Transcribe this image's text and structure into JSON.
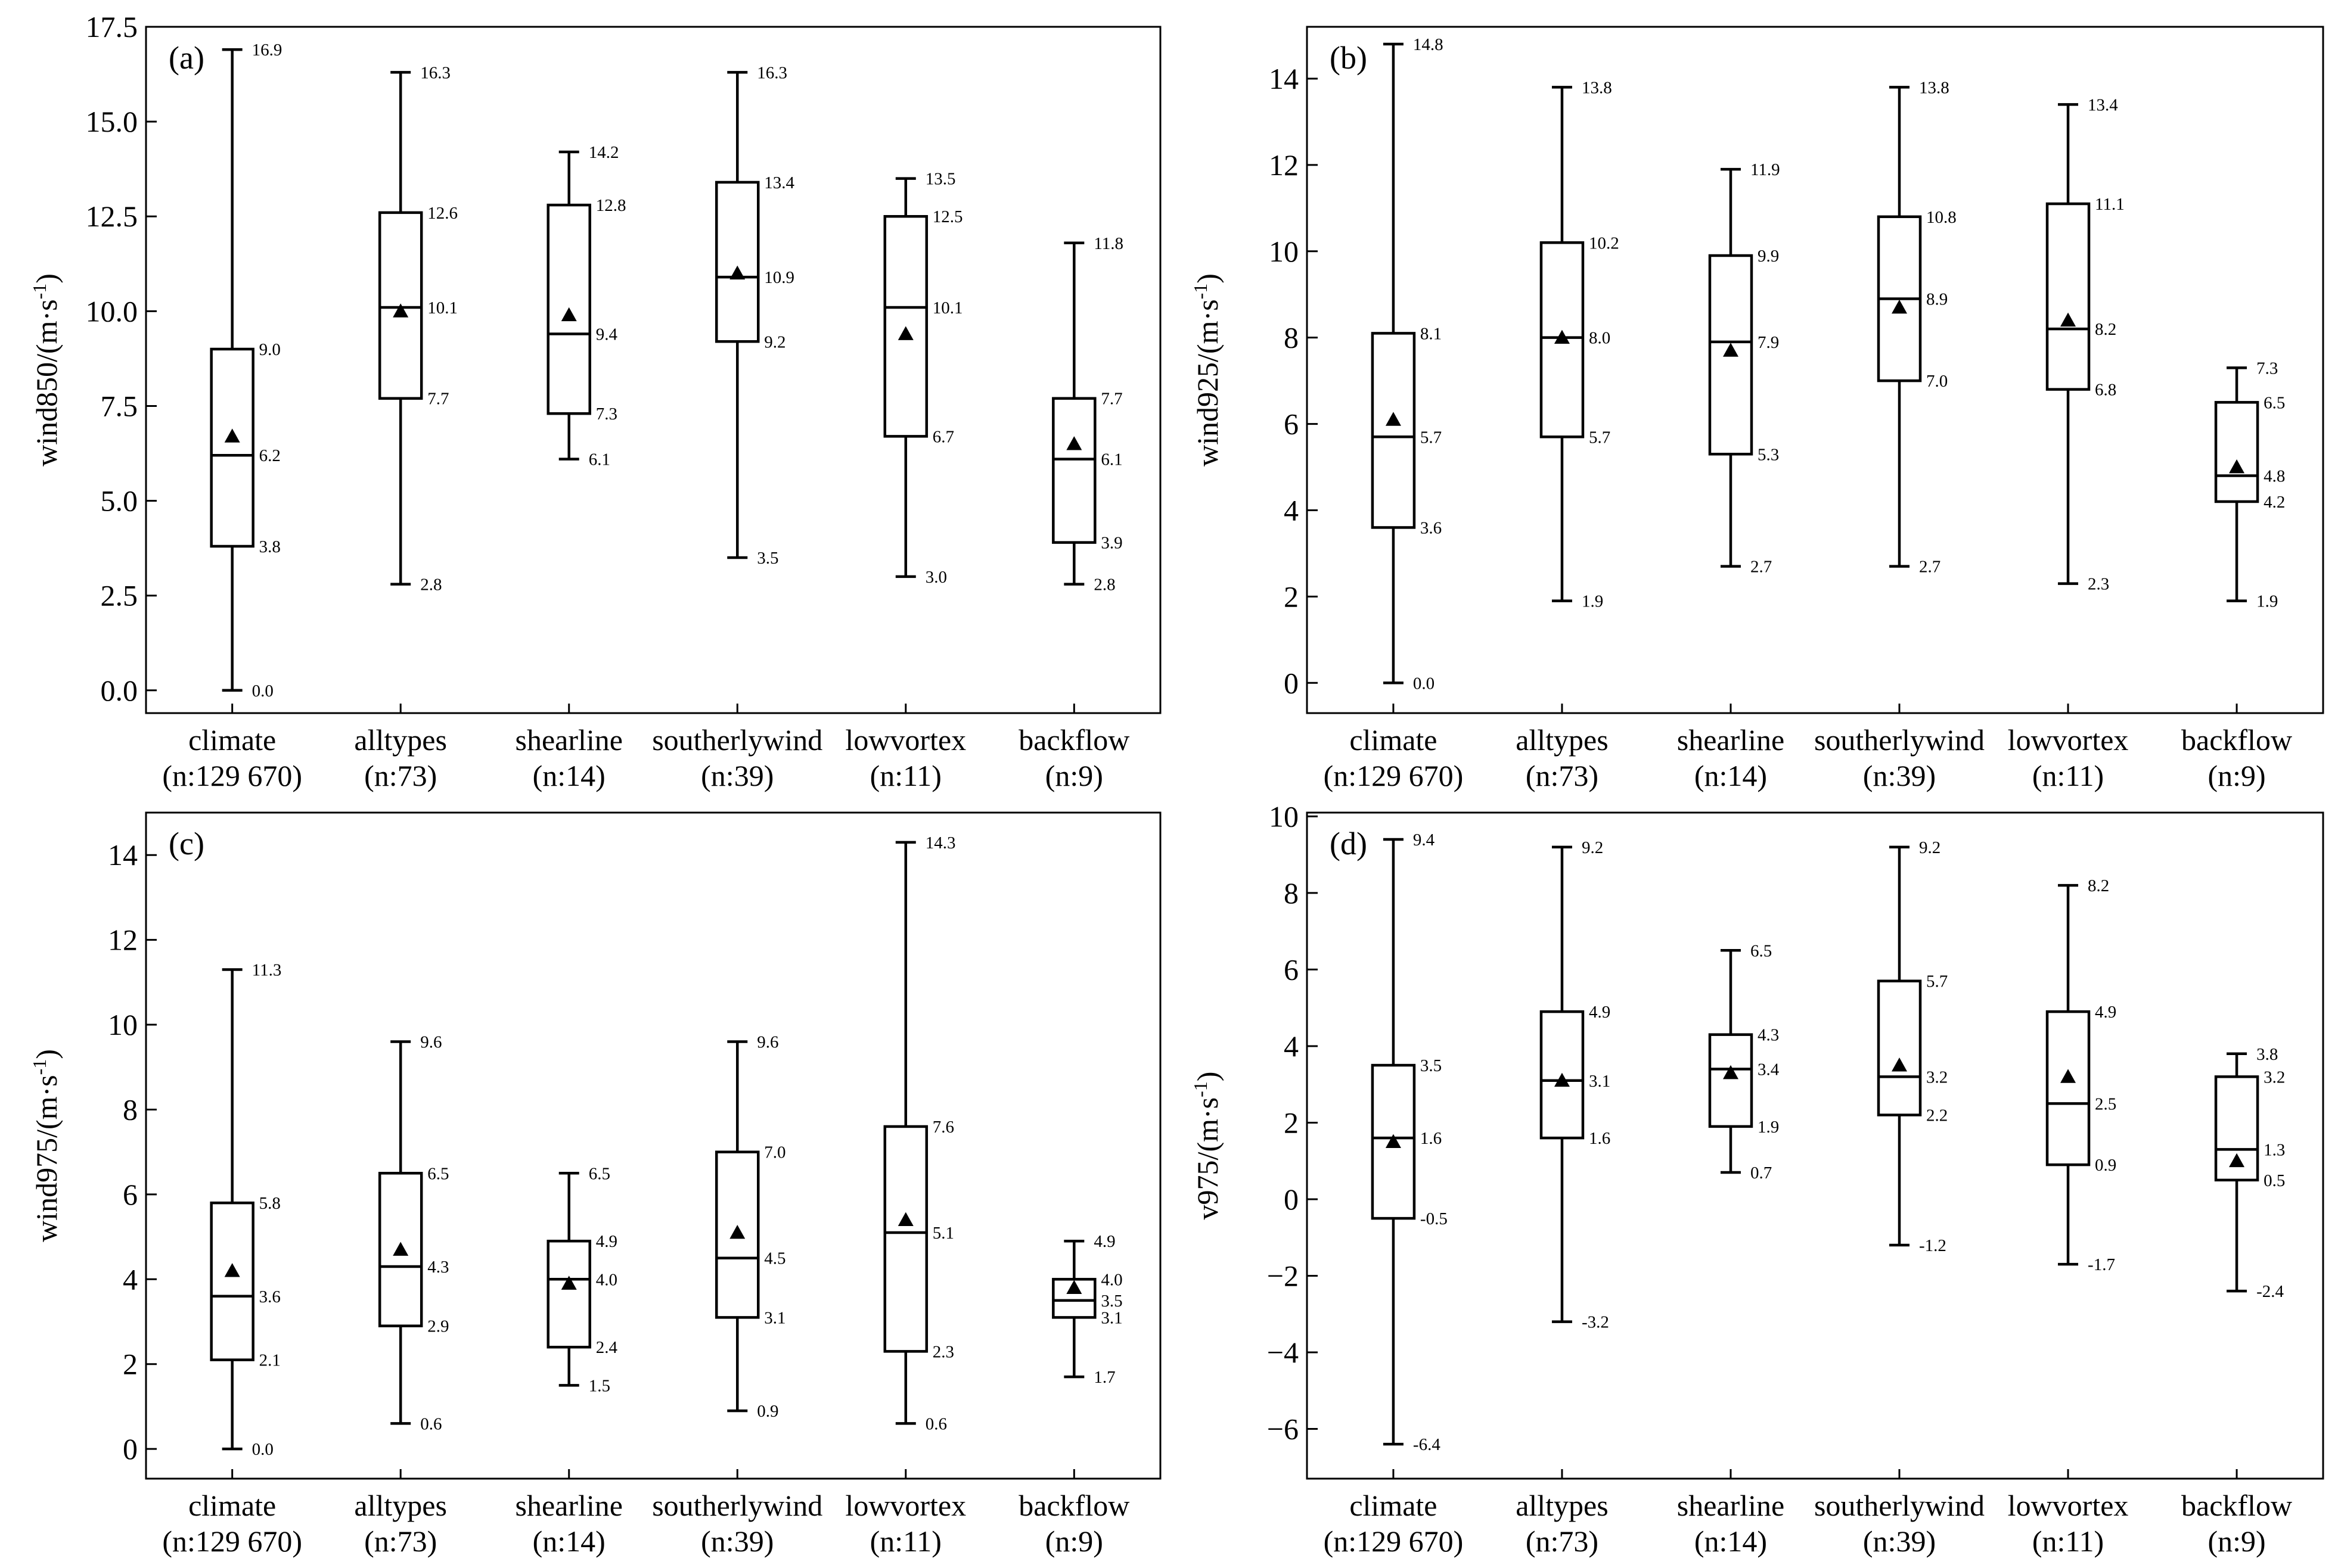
{
  "chart_data": [
    {
      "type": "box",
      "panel_label": "(a)",
      "ylabel": "wind850/(m·s",
      "ylabel_sup": "-1",
      "ylabel_close": ")",
      "ylim": [
        -0.6,
        17.5
      ],
      "yticks": [
        0.0,
        2.5,
        5.0,
        7.5,
        10.0,
        12.5,
        15.0,
        17.5
      ],
      "ytick_labels": [
        "0.0",
        "2.5",
        "5.0",
        "7.5",
        "10.0",
        "12.5",
        "15.0",
        "17.5"
      ],
      "categories": [
        {
          "name": "climate",
          "n": "(n:129 670)"
        },
        {
          "name": "alltypes",
          "n": "(n:73)"
        },
        {
          "name": "shearline",
          "n": "(n:14)"
        },
        {
          "name": "southerlywind",
          "n": "(n:39)"
        },
        {
          "name": "lowvortex",
          "n": "(n:11)"
        },
        {
          "name": "backflow",
          "n": "(n:9)"
        }
      ],
      "boxes": [
        {
          "min": 0.0,
          "q1": 3.8,
          "median": 6.2,
          "q3": 9.0,
          "max": 16.9,
          "mean": 6.7,
          "labels": {
            "min": "0.0",
            "q1": "3.8",
            "median": "6.2",
            "q3": "9.0",
            "max": "16.9"
          }
        },
        {
          "min": 2.8,
          "q1": 7.7,
          "median": 10.1,
          "q3": 12.6,
          "max": 16.3,
          "mean": 10.0,
          "labels": {
            "min": "2.8",
            "q1": "7.7",
            "median": "10.1",
            "q3": "12.6",
            "max": "16.3"
          }
        },
        {
          "min": 6.1,
          "q1": 7.3,
          "median": 9.4,
          "q3": 12.8,
          "max": 14.2,
          "mean": 9.9,
          "labels": {
            "min": "6.1",
            "q1": "7.3",
            "median": "9.4",
            "q3": "12.8",
            "max": "14.2"
          }
        },
        {
          "min": 3.5,
          "q1": 9.2,
          "median": 10.9,
          "q3": 13.4,
          "max": 16.3,
          "mean": 11.0,
          "labels": {
            "min": "3.5",
            "q1": "9.2",
            "median": "10.9",
            "q3": "13.4",
            "max": "16.3"
          }
        },
        {
          "min": 3.0,
          "q1": 6.7,
          "median": 10.1,
          "q3": 12.5,
          "max": 13.5,
          "mean": 9.4,
          "labels": {
            "min": "3.0",
            "q1": "6.7",
            "median": "10.1",
            "q3": "12.5",
            "max": "13.5"
          }
        },
        {
          "min": 2.8,
          "q1": 3.9,
          "median": 6.1,
          "q3": 7.7,
          "max": 11.8,
          "mean": 6.5,
          "labels": {
            "min": "2.8",
            "q1": "3.9",
            "median": "6.1",
            "q3": "7.7",
            "max": "11.8"
          }
        }
      ]
    },
    {
      "type": "box",
      "panel_label": "(b)",
      "ylabel": "wind925/(m·s",
      "ylabel_sup": "-1",
      "ylabel_close": ")",
      "ylim": [
        -0.7,
        15.2
      ],
      "yticks": [
        0,
        2,
        4,
        6,
        8,
        10,
        12,
        14
      ],
      "ytick_labels": [
        "0",
        "2",
        "4",
        "6",
        "8",
        "10",
        "12",
        "14"
      ],
      "categories": [
        {
          "name": "climate",
          "n": "(n:129 670)"
        },
        {
          "name": "alltypes",
          "n": "(n:73)"
        },
        {
          "name": "shearline",
          "n": "(n:14)"
        },
        {
          "name": "southerlywind",
          "n": "(n:39)"
        },
        {
          "name": "lowvortex",
          "n": "(n:11)"
        },
        {
          "name": "backflow",
          "n": "(n:9)"
        }
      ],
      "boxes": [
        {
          "min": 0.0,
          "q1": 3.6,
          "median": 5.7,
          "q3": 8.1,
          "max": 14.8,
          "mean": 6.1,
          "labels": {
            "min": "0.0",
            "q1": "3.6",
            "median": "5.7",
            "q3": "8.1",
            "max": "14.8"
          }
        },
        {
          "min": 1.9,
          "q1": 5.7,
          "median": 8.0,
          "q3": 10.2,
          "max": 13.8,
          "mean": 8.0,
          "labels": {
            "min": "1.9",
            "q1": "5.7",
            "median": "8.0",
            "q3": "10.2",
            "max": "13.8"
          }
        },
        {
          "min": 2.7,
          "q1": 5.3,
          "median": 7.9,
          "q3": 9.9,
          "max": 11.9,
          "mean": 7.7,
          "labels": {
            "min": "2.7",
            "q1": "5.3",
            "median": "7.9",
            "q3": "9.9",
            "max": "11.9"
          }
        },
        {
          "min": 2.7,
          "q1": 7.0,
          "median": 8.9,
          "q3": 10.8,
          "max": 13.8,
          "mean": 8.7,
          "labels": {
            "min": "2.7",
            "q1": "7.0",
            "median": "8.9",
            "q3": "10.8",
            "max": "13.8"
          }
        },
        {
          "min": 2.3,
          "q1": 6.8,
          "median": 8.2,
          "q3": 11.1,
          "max": 13.4,
          "mean": 8.4,
          "labels": {
            "min": "2.3",
            "q1": "6.8",
            "median": "8.2",
            "q3": "11.1",
            "max": "13.4"
          }
        },
        {
          "min": 1.9,
          "q1": 4.2,
          "median": 4.8,
          "q3": 6.5,
          "max": 7.3,
          "mean": 5.0,
          "labels": {
            "min": "1.9",
            "q1": "4.2",
            "median": "4.8",
            "q3": "6.5",
            "max": "7.3"
          }
        }
      ]
    },
    {
      "type": "box",
      "panel_label": "(c)",
      "ylabel": "wind975/(m·s",
      "ylabel_sup": "-1",
      "ylabel_close": ")",
      "ylim": [
        -0.7,
        15.0
      ],
      "yticks": [
        0,
        2,
        4,
        6,
        8,
        10,
        12,
        14
      ],
      "ytick_labels": [
        "0",
        "2",
        "4",
        "6",
        "8",
        "10",
        "12",
        "14"
      ],
      "categories": [
        {
          "name": "climate",
          "n": "(n:129 670)"
        },
        {
          "name": "alltypes",
          "n": "(n:73)"
        },
        {
          "name": "shearline",
          "n": "(n:14)"
        },
        {
          "name": "southerlywind",
          "n": "(n:39)"
        },
        {
          "name": "lowvortex",
          "n": "(n:11)"
        },
        {
          "name": "backflow",
          "n": "(n:9)"
        }
      ],
      "boxes": [
        {
          "min": 0.0,
          "q1": 2.1,
          "median": 3.6,
          "q3": 5.8,
          "max": 11.3,
          "mean": 4.2,
          "labels": {
            "min": "0.0",
            "q1": "2.1",
            "median": "3.6",
            "q3": "5.8",
            "max": "11.3"
          }
        },
        {
          "min": 0.6,
          "q1": 2.9,
          "median": 4.3,
          "q3": 6.5,
          "max": 9.6,
          "mean": 4.7,
          "labels": {
            "min": "0.6",
            "q1": "2.9",
            "median": "4.3",
            "q3": "6.5",
            "max": "9.6"
          }
        },
        {
          "min": 1.5,
          "q1": 2.4,
          "median": 4.0,
          "q3": 4.9,
          "max": 6.5,
          "mean": 3.9,
          "labels": {
            "min": "1.5",
            "q1": "2.4",
            "median": "4.0",
            "q3": "4.9",
            "max": "6.5"
          }
        },
        {
          "min": 0.9,
          "q1": 3.1,
          "median": 4.5,
          "q3": 7.0,
          "max": 9.6,
          "mean": 5.1,
          "labels": {
            "min": "0.9",
            "q1": "3.1",
            "median": "4.5",
            "q3": "7.0",
            "max": "9.6"
          }
        },
        {
          "min": 0.6,
          "q1": 2.3,
          "median": 5.1,
          "q3": 7.6,
          "max": 14.3,
          "mean": 5.4,
          "labels": {
            "min": "0.6",
            "q1": "2.3",
            "median": "5.1",
            "q3": "7.6",
            "max": "14.3"
          }
        },
        {
          "min": 1.7,
          "q1": 3.1,
          "median": 3.5,
          "q3": 4.0,
          "max": 4.9,
          "mean": 3.8,
          "labels": {
            "min": "1.7",
            "q1": "3.1",
            "median": "3.5",
            "q3": "4.0",
            "max": "4.9"
          }
        }
      ]
    },
    {
      "type": "box",
      "panel_label": "(d)",
      "ylabel": "v975/(m·s",
      "ylabel_sup": "-1",
      "ylabel_close": ")",
      "ylim": [
        -7.3,
        10.1
      ],
      "yticks": [
        -6,
        -4,
        -2,
        0,
        2,
        4,
        6,
        8,
        10
      ],
      "ytick_labels": [
        "−6",
        "−4",
        "−2",
        "0",
        "2",
        "4",
        "6",
        "8",
        "10"
      ],
      "categories": [
        {
          "name": "climate",
          "n": "(n:129 670)"
        },
        {
          "name": "alltypes",
          "n": "(n:73)"
        },
        {
          "name": "shearline",
          "n": "(n:14)"
        },
        {
          "name": "southerlywind",
          "n": "(n:39)"
        },
        {
          "name": "lowvortex",
          "n": "(n:11)"
        },
        {
          "name": "backflow",
          "n": "(n:9)"
        }
      ],
      "boxes": [
        {
          "min": -6.4,
          "q1": -0.5,
          "median": 1.6,
          "q3": 3.5,
          "max": 9.4,
          "mean": 1.5,
          "labels": {
            "min": "-6.4",
            "q1": "-0.5",
            "median": "1.6",
            "q3": "3.5",
            "max": "9.4"
          }
        },
        {
          "min": -3.2,
          "q1": 1.6,
          "median": 3.1,
          "q3": 4.9,
          "max": 9.2,
          "mean": 3.1,
          "labels": {
            "min": "-3.2",
            "q1": "1.6",
            "median": "3.1",
            "q3": "4.9",
            "max": "9.2"
          }
        },
        {
          "min": 0.7,
          "q1": 1.9,
          "median": 3.4,
          "q3": 4.3,
          "max": 6.5,
          "mean": 3.3,
          "labels": {
            "min": "0.7",
            "q1": "1.9",
            "median": "3.4",
            "q3": "4.3",
            "max": "6.5"
          }
        },
        {
          "min": -1.2,
          "q1": 2.2,
          "median": 3.2,
          "q3": 5.7,
          "max": 9.2,
          "mean": 3.5,
          "labels": {
            "min": "-1.2",
            "q1": "2.2",
            "median": "3.2",
            "q3": "5.7",
            "max": "9.2"
          }
        },
        {
          "min": -1.7,
          "q1": 0.9,
          "median": 2.5,
          "q3": 4.9,
          "max": 8.2,
          "mean": 3.2,
          "labels": {
            "min": "-1.7",
            "q1": "0.9",
            "median": "2.5",
            "q3": "4.9",
            "max": "8.2"
          }
        },
        {
          "min": -2.4,
          "q1": 0.5,
          "median": 1.3,
          "q3": 3.2,
          "max": 3.8,
          "mean": 1.0,
          "labels": {
            "min": "-2.4",
            "q1": "0.5",
            "median": "1.3",
            "q3": "3.2",
            "max": "3.8"
          }
        }
      ]
    }
  ]
}
